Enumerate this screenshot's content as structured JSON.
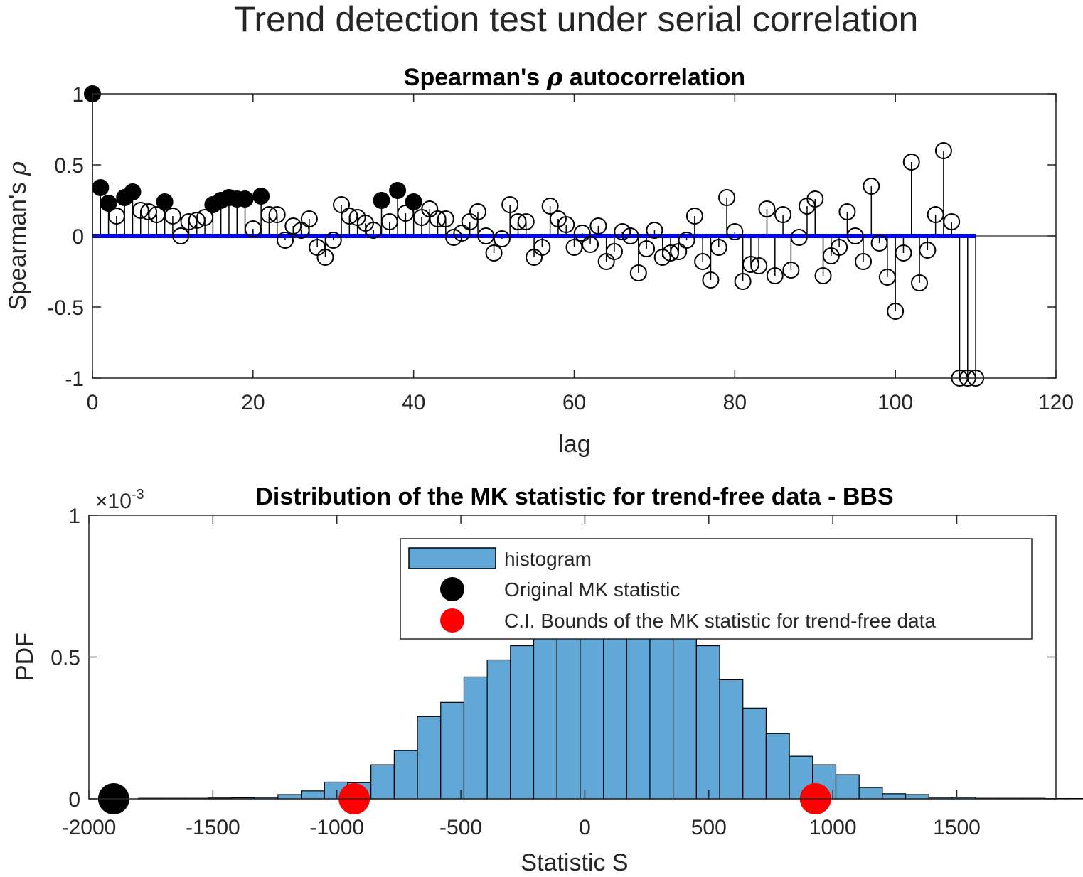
{
  "figure_title": "Trend detection test under serial correlation",
  "chart_data": [
    {
      "type": "stem",
      "title": "Spearman's ρ autocorrelation",
      "title_parts": [
        "Spearman's ",
        "ρ",
        " autocorrelation"
      ],
      "xlabel": "lag",
      "ylabel": "Spearman's ρ",
      "ylabel_parts": [
        "Spearman's ",
        "ρ"
      ],
      "xlim": [
        0,
        120
      ],
      "ylim": [
        -1,
        1
      ],
      "xticks": [
        0,
        20,
        40,
        60,
        80,
        100,
        120
      ],
      "yticks": [
        -1,
        -0.5,
        0,
        0.5,
        1
      ],
      "grid": false,
      "baseline": {
        "y": 0,
        "x_range": [
          0,
          110
        ],
        "color": "#0000ff"
      },
      "lags": [
        0,
        1,
        2,
        3,
        4,
        5,
        6,
        7,
        8,
        9,
        10,
        11,
        12,
        13,
        14,
        15,
        16,
        17,
        18,
        19,
        20,
        21,
        22,
        23,
        24,
        25,
        26,
        27,
        28,
        29,
        30,
        31,
        32,
        33,
        34,
        35,
        36,
        37,
        38,
        39,
        40,
        41,
        42,
        43,
        44,
        45,
        46,
        47,
        48,
        49,
        50,
        51,
        52,
        53,
        54,
        55,
        56,
        57,
        58,
        59,
        60,
        61,
        62,
        63,
        64,
        65,
        66,
        67,
        68,
        69,
        70,
        71,
        72,
        73,
        74,
        75,
        76,
        77,
        78,
        79,
        80,
        81,
        82,
        83,
        84,
        85,
        86,
        87,
        88,
        89,
        90,
        91,
        92,
        93,
        94,
        95,
        96,
        97,
        98,
        99,
        100,
        101,
        102,
        103,
        104,
        105,
        106,
        107,
        108,
        109,
        110
      ],
      "rho": [
        1.0,
        0.34,
        0.23,
        0.14,
        0.27,
        0.31,
        0.18,
        0.17,
        0.15,
        0.24,
        0.14,
        0.0,
        0.1,
        0.11,
        0.13,
        0.22,
        0.25,
        0.27,
        0.26,
        0.26,
        0.05,
        0.28,
        0.15,
        0.15,
        -0.03,
        0.07,
        0.04,
        0.12,
        -0.08,
        -0.15,
        -0.03,
        0.22,
        0.14,
        0.13,
        0.09,
        0.04,
        0.25,
        0.1,
        0.32,
        0.16,
        0.24,
        0.13,
        0.19,
        0.12,
        0.12,
        -0.01,
        0.02,
        0.1,
        0.17,
        0.0,
        -0.12,
        -0.02,
        0.22,
        0.1,
        0.1,
        -0.15,
        -0.08,
        0.21,
        0.12,
        0.08,
        -0.08,
        0.02,
        -0.06,
        0.07,
        -0.18,
        -0.11,
        0.03,
        0.0,
        -0.26,
        -0.09,
        0.04,
        -0.15,
        -0.12,
        -0.11,
        -0.03,
        0.14,
        -0.18,
        -0.31,
        -0.08,
        0.27,
        0.03,
        -0.32,
        -0.2,
        -0.21,
        0.19,
        -0.28,
        0.15,
        -0.24,
        -0.01,
        0.21,
        0.26,
        -0.28,
        -0.14,
        -0.08,
        0.17,
        0.0,
        -0.18,
        0.35,
        -0.05,
        -0.29,
        -0.53,
        -0.12,
        0.52,
        -0.33,
        -0.1,
        0.15,
        0.6,
        0.1,
        -1.0,
        -1.0,
        -1.0
      ],
      "significant": [
        1,
        1,
        1,
        0,
        1,
        1,
        0,
        0,
        0,
        1,
        0,
        0,
        0,
        0,
        0,
        1,
        1,
        1,
        1,
        1,
        0,
        1,
        0,
        0,
        0,
        0,
        0,
        0,
        0,
        0,
        0,
        0,
        0,
        0,
        0,
        0,
        1,
        0,
        1,
        0,
        1,
        0,
        0,
        0,
        0,
        0,
        0,
        0,
        0,
        0,
        0,
        0,
        0,
        0,
        0,
        0,
        0,
        0,
        0,
        0,
        0,
        0,
        0,
        0,
        0,
        0,
        0,
        0,
        0,
        0,
        0,
        0,
        0,
        0,
        0,
        0,
        0,
        0,
        0,
        0,
        0,
        0,
        0,
        0,
        0,
        0,
        0,
        0,
        0,
        0,
        0,
        0,
        0,
        0,
        0,
        0,
        0,
        0,
        0,
        0,
        0,
        0,
        0,
        0,
        0,
        0,
        0,
        0,
        0,
        0,
        0
      ],
      "colors": {
        "baseline": "#0000ff",
        "stem": "#000000",
        "marker": "#000000"
      }
    },
    {
      "type": "histogram",
      "title": "Distribution of the MK statistic for trend-free data - BBS",
      "xlabel": "Statistic S",
      "ylabel": "PDF",
      "xlim": [
        -2000,
        1900
      ],
      "ylim": [
        0,
        0.001
      ],
      "xticks": [
        -2000,
        -1500,
        -1000,
        -500,
        0,
        500,
        1000,
        1500
      ],
      "xtick_labels": [
        "-2000",
        "-1500",
        "-1000",
        "-500",
        "0",
        "500",
        "1000",
        "1500"
      ],
      "yticks": [
        0,
        0.0005,
        0.001
      ],
      "ytick_labels": [
        "0",
        "0.5",
        "1"
      ],
      "y_exponent": {
        "base": "×10",
        "exp": "-3"
      },
      "grid": false,
      "bins": {
        "start": -1800,
        "width": 93.75,
        "values": [
          2e-06,
          2e-06,
          2e-06,
          3e-06,
          4e-06,
          5e-06,
          1.5e-05,
          2.8e-05,
          5.9e-05,
          5.7e-05,
          0.00012,
          0.00017,
          0.00029,
          0.00034,
          0.00043,
          0.00049,
          0.00054,
          0.00058,
          0.00058,
          0.00058,
          0.00058,
          0.00058,
          0.00058,
          0.00058,
          0.00054,
          0.00042,
          0.00032,
          0.00023,
          0.00015,
          0.00012,
          8.5e-05,
          4e-05,
          1.8e-05,
          1.5e-05,
          5e-06,
          5e-06,
          2e-06,
          2e-06,
          2e-06,
          1e-06,
          1e-06
        ]
      },
      "original_statistic": {
        "x": -1900,
        "y": 0,
        "color": "#000000"
      },
      "ci_bounds": {
        "x": [
          -930,
          930
        ],
        "y": 0,
        "color": "#ff0000"
      },
      "bar_color": "#61a8d7",
      "legend": {
        "location": "top-right",
        "entries": [
          {
            "label": "histogram",
            "kind": "patch",
            "color": "#61a8d7"
          },
          {
            "label": "Original MK statistic",
            "kind": "marker",
            "color": "#000000"
          },
          {
            "label": "C.I. Bounds of the MK statistic for trend-free data",
            "kind": "marker",
            "color": "#ff0000"
          }
        ]
      }
    }
  ]
}
